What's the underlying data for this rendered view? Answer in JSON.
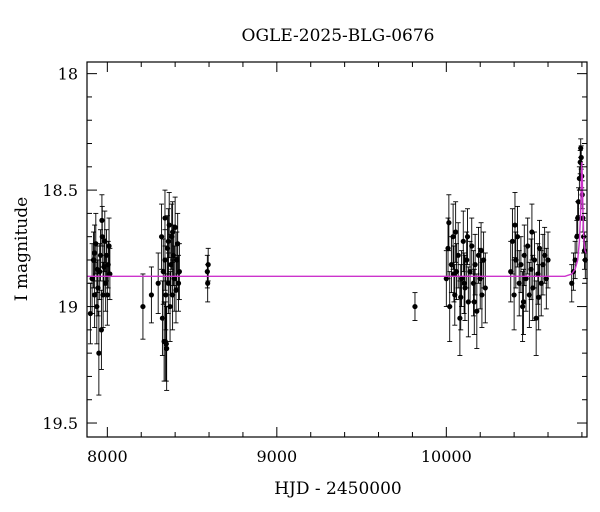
{
  "chart_data": {
    "type": "scatter",
    "title": "OGLE-2025-BLG-0676",
    "xlabel": "HJD - 2450000",
    "ylabel": "I magnitude",
    "xlim": [
      7880,
      10830
    ],
    "ylim": [
      19.56,
      17.95
    ],
    "y_inverted": true,
    "xticks": [
      8000,
      9000,
      10000
    ],
    "xtick_labels": [
      "8000",
      "9000",
      "10000"
    ],
    "yticks": [
      18,
      18.5,
      19,
      19.5
    ],
    "ytick_labels": [
      "18",
      "18.5",
      "19",
      "19.5"
    ],
    "colors": {
      "points": "#000000",
      "model": "#cc33cc"
    },
    "model": {
      "baseline_mag": 18.87,
      "x": [
        7880,
        10700,
        10740,
        10760,
        10775,
        10785,
        10792,
        10797,
        10800,
        10803,
        10807,
        10812,
        10818,
        10825,
        10830
      ],
      "y": [
        18.87,
        18.87,
        18.86,
        18.84,
        18.8,
        18.72,
        18.6,
        18.45,
        18.38,
        18.47,
        18.62,
        18.72,
        18.76,
        18.77,
        18.77
      ]
    },
    "points": [
      [
        7900,
        19.03,
        0.13
      ],
      [
        7910,
        18.88,
        0.15
      ],
      [
        7918,
        18.8,
        0.12
      ],
      [
        7925,
        18.95,
        0.14
      ],
      [
        7932,
        18.73,
        0.13
      ],
      [
        7938,
        19.0,
        0.16
      ],
      [
        7945,
        18.92,
        0.12
      ],
      [
        7950,
        19.2,
        0.18
      ],
      [
        7955,
        18.85,
        0.12
      ],
      [
        7960,
        18.78,
        0.11
      ],
      [
        7965,
        19.1,
        0.17
      ],
      [
        7970,
        18.7,
        0.13
      ],
      [
        7975,
        18.95,
        0.14
      ],
      [
        7980,
        18.83,
        0.12
      ],
      [
        7985,
        18.72,
        0.13
      ],
      [
        7990,
        18.9,
        0.12
      ],
      [
        7995,
        18.78,
        0.11
      ],
      [
        8000,
        18.95,
        0.13
      ],
      [
        8005,
        18.82,
        0.1
      ],
      [
        8010,
        18.74,
        0.12
      ],
      [
        7968,
        18.63,
        0.11
      ],
      [
        7940,
        18.84,
        0.1
      ],
      [
        7925,
        18.77,
        0.12
      ],
      [
        8015,
        18.86,
        0.11
      ],
      [
        8210,
        19.0,
        0.14
      ],
      [
        8260,
        18.95,
        0.12
      ],
      [
        8300,
        18.9,
        0.13
      ],
      [
        8320,
        18.7,
        0.14
      ],
      [
        8325,
        19.05,
        0.16
      ],
      [
        8330,
        18.85,
        0.14
      ],
      [
        8335,
        19.15,
        0.17
      ],
      [
        8340,
        18.8,
        0.13
      ],
      [
        8345,
        18.95,
        0.15
      ],
      [
        8350,
        19.18,
        0.18
      ],
      [
        8355,
        18.75,
        0.14
      ],
      [
        8360,
        18.9,
        0.13
      ],
      [
        8365,
        18.65,
        0.14
      ],
      [
        8370,
        19.0,
        0.15
      ],
      [
        8375,
        18.82,
        0.13
      ],
      [
        8380,
        18.7,
        0.14
      ],
      [
        8385,
        18.95,
        0.15
      ],
      [
        8390,
        18.78,
        0.13
      ],
      [
        8395,
        18.88,
        0.14
      ],
      [
        8400,
        18.66,
        0.13
      ],
      [
        8405,
        18.93,
        0.14
      ],
      [
        8410,
        18.8,
        0.12
      ],
      [
        8415,
        18.73,
        0.13
      ],
      [
        8340,
        18.62,
        0.12
      ],
      [
        8360,
        18.72,
        0.14
      ],
      [
        8342,
        19.15,
        0.17
      ],
      [
        8348,
        19.16,
        0.16
      ],
      [
        8420,
        18.9,
        0.12
      ],
      [
        8425,
        18.85,
        0.12
      ],
      [
        8385,
        18.68,
        0.13
      ],
      [
        8590,
        18.85,
        0.07
      ],
      [
        8592,
        18.9,
        0.08
      ],
      [
        8595,
        18.82,
        0.07
      ],
      [
        9815,
        19.0,
        0.06
      ],
      [
        10000,
        18.88,
        0.12
      ],
      [
        10010,
        18.75,
        0.13
      ],
      [
        10020,
        19.0,
        0.15
      ],
      [
        10030,
        18.82,
        0.12
      ],
      [
        10040,
        18.7,
        0.14
      ],
      [
        10050,
        18.95,
        0.13
      ],
      [
        10060,
        18.85,
        0.12
      ],
      [
        10070,
        18.78,
        0.14
      ],
      [
        10080,
        19.05,
        0.16
      ],
      [
        10090,
        18.88,
        0.12
      ],
      [
        10100,
        18.72,
        0.13
      ],
      [
        10110,
        18.92,
        0.14
      ],
      [
        10120,
        18.8,
        0.12
      ],
      [
        10130,
        18.98,
        0.15
      ],
      [
        10140,
        18.85,
        0.13
      ],
      [
        10150,
        18.74,
        0.12
      ],
      [
        10160,
        18.9,
        0.14
      ],
      [
        10170,
        18.82,
        0.13
      ],
      [
        10180,
        19.02,
        0.16
      ],
      [
        10190,
        18.78,
        0.12
      ],
      [
        10200,
        18.88,
        0.13
      ],
      [
        10210,
        18.95,
        0.14
      ],
      [
        10220,
        18.8,
        0.12
      ],
      [
        10230,
        18.92,
        0.15
      ],
      [
        10015,
        18.64,
        0.12
      ],
      [
        10055,
        18.68,
        0.13
      ],
      [
        10085,
        18.96,
        0.14
      ],
      [
        10125,
        18.7,
        0.12
      ],
      [
        10165,
        18.98,
        0.14
      ],
      [
        10205,
        18.76,
        0.12
      ],
      [
        10045,
        18.86,
        0.12
      ],
      [
        10105,
        18.9,
        0.13
      ],
      [
        10380,
        18.85,
        0.13
      ],
      [
        10390,
        18.72,
        0.14
      ],
      [
        10400,
        18.95,
        0.15
      ],
      [
        10410,
        18.8,
        0.12
      ],
      [
        10420,
        18.7,
        0.13
      ],
      [
        10430,
        18.9,
        0.14
      ],
      [
        10440,
        18.82,
        0.12
      ],
      [
        10450,
        19.0,
        0.15
      ],
      [
        10460,
        18.78,
        0.13
      ],
      [
        10470,
        18.88,
        0.14
      ],
      [
        10480,
        18.74,
        0.12
      ],
      [
        10490,
        18.95,
        0.14
      ],
      [
        10500,
        18.84,
        0.13
      ],
      [
        10510,
        18.92,
        0.14
      ],
      [
        10520,
        18.8,
        0.12
      ],
      [
        10530,
        19.05,
        0.16
      ],
      [
        10540,
        18.86,
        0.13
      ],
      [
        10550,
        18.75,
        0.12
      ],
      [
        10560,
        18.9,
        0.14
      ],
      [
        10570,
        18.82,
        0.13
      ],
      [
        10580,
        18.78,
        0.12
      ],
      [
        10590,
        18.88,
        0.13
      ],
      [
        10600,
        18.8,
        0.12
      ],
      [
        10405,
        18.65,
        0.14
      ],
      [
        10455,
        18.98,
        0.14
      ],
      [
        10505,
        18.68,
        0.12
      ],
      [
        10545,
        18.96,
        0.14
      ],
      [
        10740,
        18.9,
        0.08
      ],
      [
        10750,
        18.85,
        0.08
      ],
      [
        10760,
        18.8,
        0.08
      ],
      [
        10770,
        18.7,
        0.07
      ],
      [
        10775,
        18.62,
        0.07
      ],
      [
        10780,
        18.55,
        0.06
      ],
      [
        10785,
        18.45,
        0.05
      ],
      [
        10790,
        18.38,
        0.05
      ],
      [
        10793,
        18.32,
        0.04
      ],
      [
        10796,
        18.36,
        0.05
      ],
      [
        10799,
        18.44,
        0.05
      ],
      [
        10802,
        18.52,
        0.06
      ],
      [
        10806,
        18.62,
        0.06
      ],
      [
        10810,
        18.7,
        0.07
      ],
      [
        10815,
        18.76,
        0.08
      ],
      [
        10820,
        18.8,
        0.08
      ]
    ]
  }
}
